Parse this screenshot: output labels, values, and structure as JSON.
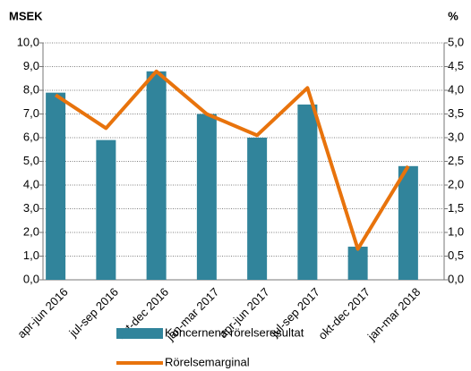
{
  "chart_data": {
    "type": "bar_line",
    "y_title": "MSEK",
    "y2_title": "%",
    "categories": [
      "apr-jun 2016",
      "jul-sep 2016",
      "okt-dec 2016",
      "jan-mar 2017",
      "apr-jun 2017",
      "jul-sep 2017",
      "okt-dec 2017",
      "jan-mar 2018"
    ],
    "series": [
      {
        "name": "Koncernens rörelseresultat",
        "type": "bar",
        "color": "#31849b",
        "values": [
          7.9,
          5.9,
          8.8,
          7.0,
          6.0,
          7.4,
          1.4,
          4.8
        ]
      },
      {
        "name": "Rörelsemarginal",
        "type": "line",
        "axis": "y2",
        "color": "#e8730c",
        "values": [
          3.9,
          3.2,
          4.4,
          3.5,
          3.05,
          4.05,
          0.65,
          2.4
        ]
      }
    ],
    "ylim": [
      0,
      10
    ],
    "yticks": [
      {
        "value": 0,
        "label": "0,0"
      },
      {
        "value": 1,
        "label": "1,0"
      },
      {
        "value": 2,
        "label": "2,0"
      },
      {
        "value": 3,
        "label": "3,0"
      },
      {
        "value": 4,
        "label": "4,0"
      },
      {
        "value": 5,
        "label": "5,0"
      },
      {
        "value": 6,
        "label": "6,0"
      },
      {
        "value": 7,
        "label": "7,0"
      },
      {
        "value": 8,
        "label": "8,0"
      },
      {
        "value": 9,
        "label": "9,0"
      },
      {
        "value": 10,
        "label": "10,0"
      }
    ],
    "y2lim": [
      0,
      5
    ],
    "y2ticks": [
      {
        "value": 0,
        "label": "0,0"
      },
      {
        "value": 0.5,
        "label": "0,5"
      },
      {
        "value": 1,
        "label": "1,0"
      },
      {
        "value": 1.5,
        "label": "1,5"
      },
      {
        "value": 2,
        "label": "2,0"
      },
      {
        "value": 2.5,
        "label": "2,5"
      },
      {
        "value": 3,
        "label": "3,0"
      },
      {
        "value": 3.5,
        "label": "3,5"
      },
      {
        "value": 4,
        "label": "4,0"
      },
      {
        "value": 4.5,
        "label": "4,5"
      },
      {
        "value": 5,
        "label": "5,0"
      }
    ],
    "grid": true,
    "legend": "bottom"
  }
}
